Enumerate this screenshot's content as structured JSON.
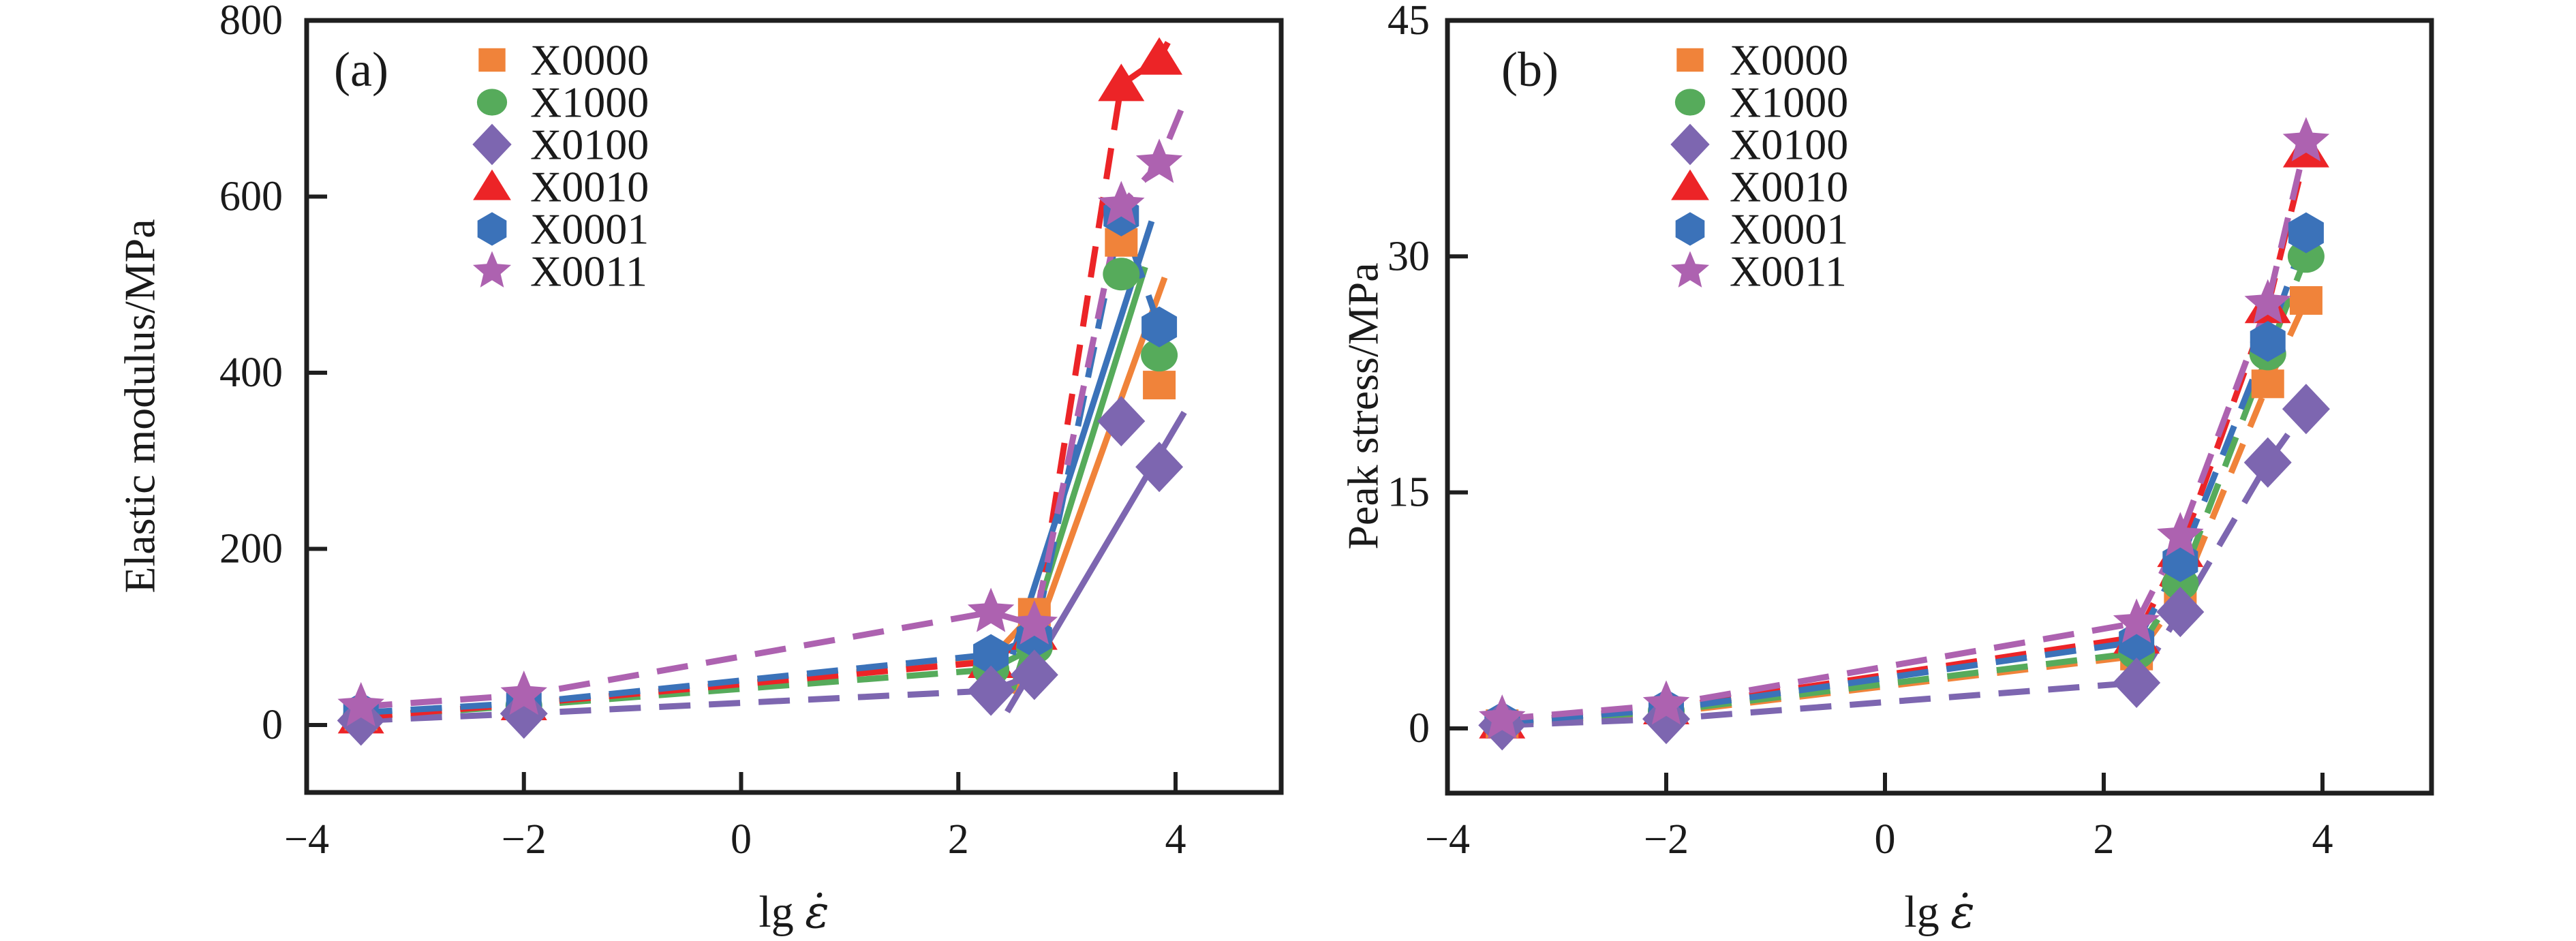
{
  "figure": {
    "background": "#ffffff",
    "spine_color": "#1f1f1f",
    "text_color": "#1a1a1a"
  },
  "chart_data": [
    {
      "type": "scatter",
      "panel_label": "(a)",
      "xlabel": "lg ε̇",
      "ylabel": "Elastic modulus/MPa",
      "xlim": [
        -4,
        4.97
      ],
      "ylim": [
        0,
        800
      ],
      "xticks": [
        -4,
        -2,
        0,
        2,
        4
      ],
      "yticks": [
        0,
        200,
        400,
        600,
        800
      ],
      "grid": false,
      "legend_position": "upper-left-inside",
      "x": [
        -3.5,
        -2,
        2.3,
        2.7,
        3.5,
        3.85
      ],
      "series": [
        {
          "name": "X0000",
          "marker": "square",
          "color": "#F0833A",
          "line_style": "dashed",
          "dashed_points": 4,
          "values": [
            10,
            23,
            75,
            128,
            548,
            386
          ],
          "fit_line": {
            "x": [
              2.52,
              3.9
            ],
            "y": [
              35,
              508
            ]
          }
        },
        {
          "name": "X1000",
          "marker": "circle",
          "color": "#56AB5B",
          "line_style": "dashed",
          "dashed_points": 4,
          "values": [
            9,
            22,
            63,
            88,
            512,
            420
          ],
          "fit_line": {
            "x": [
              2.5,
              3.72
            ],
            "y": [
              40,
              520
            ]
          }
        },
        {
          "name": "X0100",
          "marker": "diamond",
          "color": "#7D66B0",
          "line_style": "dashed",
          "dashed_points": 4,
          "values": [
            5,
            13,
            39,
            57,
            345,
            293
          ],
          "fit_line": {
            "x": [
              2.45,
              4.08
            ],
            "y": [
              15,
              355
            ]
          }
        },
        {
          "name": "X0010",
          "marker": "triangle",
          "color": "#EC2427",
          "line_style": "dashed",
          "dashed_points": 6,
          "values": [
            9,
            24,
            72,
            104,
            727,
            757
          ],
          "extend": [
            3.93,
            775
          ]
        },
        {
          "name": "X0001",
          "marker": "hexagon",
          "color": "#3B72B9",
          "line_style": "dashed",
          "dashed_points": 6,
          "values": [
            14,
            25,
            80,
            99,
            578,
            452
          ],
          "fit_line": {
            "x": [
              2.5,
              3.78
            ],
            "y": [
              80,
              572
            ]
          }
        },
        {
          "name": "X0011",
          "marker": "star",
          "color": "#AD62B0",
          "line_style": "dashed",
          "dashed_points": 6,
          "values": [
            21,
            34,
            128,
            114,
            590,
            638
          ],
          "extend": [
            4.05,
            698
          ]
        }
      ]
    },
    {
      "type": "scatter",
      "panel_label": "(b)",
      "xlabel": "lg ε̇",
      "ylabel": "Peak stress/MPa",
      "xlim": [
        -4,
        5.0
      ],
      "ylim": [
        0,
        45
      ],
      "xticks": [
        -4,
        -2,
        0,
        2,
        4
      ],
      "yticks": [
        0,
        15,
        30,
        45
      ],
      "grid": false,
      "legend_position": "upper-left-inside",
      "x": [
        -3.5,
        -2,
        2.3,
        2.7,
        3.5,
        3.85
      ],
      "series": [
        {
          "name": "X0000",
          "marker": "square",
          "color": "#F0833A",
          "line_style": "dashed",
          "dashed_points": 6,
          "values": [
            0.3,
            1.0,
            4.6,
            8.4,
            21.9,
            27.2
          ]
        },
        {
          "name": "X1000",
          "marker": "circle",
          "color": "#56AB5B",
          "line_style": "dashed",
          "dashed_points": 6,
          "values": [
            0.3,
            1.1,
            4.8,
            9.2,
            23.8,
            30.0
          ]
        },
        {
          "name": "X0100",
          "marker": "diamond",
          "color": "#7D66B0",
          "line_style": "dashed",
          "dashed_points": 6,
          "values": [
            0.2,
            0.6,
            2.9,
            7.4,
            16.9,
            20.3
          ]
        },
        {
          "name": "X0010",
          "marker": "triangle",
          "color": "#EC2427",
          "line_style": "dashed",
          "dashed_points": 6,
          "values": [
            0.4,
            1.3,
            5.8,
            11.3,
            26.8,
            36.7
          ]
        },
        {
          "name": "X0001",
          "marker": "hexagon",
          "color": "#3B72B9",
          "line_style": "dashed",
          "dashed_points": 6,
          "values": [
            0.4,
            1.2,
            5.5,
            10.6,
            24.6,
            31.5
          ]
        },
        {
          "name": "X0011",
          "marker": "star",
          "color": "#AD62B0",
          "line_style": "dashed",
          "dashed_points": 6,
          "values": [
            0.6,
            1.5,
            6.7,
            12.2,
            27.0,
            37.3
          ]
        }
      ]
    }
  ]
}
